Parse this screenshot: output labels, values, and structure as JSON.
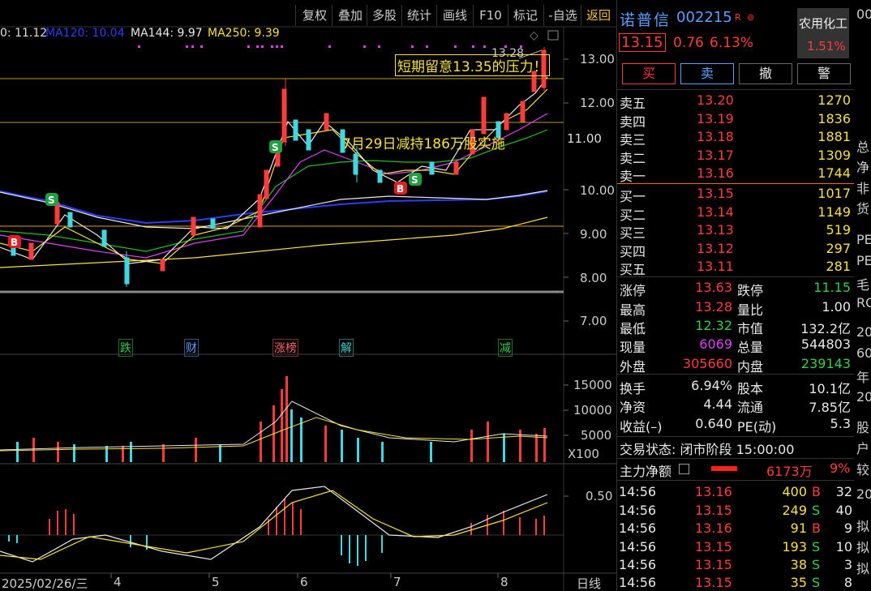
{
  "toolbar": {
    "buttons": [
      "复权",
      "叠加",
      "多股",
      "统计",
      "画线",
      "F10",
      "标记",
      "-自选",
      "返回"
    ]
  },
  "ma_legend": [
    {
      "label": "0: 11.12",
      "color": "#e8e8e8"
    },
    {
      "label": "MA120: 10.04",
      "color": "#2a3cff"
    },
    {
      "label": "MA144: 9.97",
      "color": "#e8e8e8"
    },
    {
      "label": "MA250: 9.39",
      "color": "#f7e13a"
    }
  ],
  "price_axis": [
    "13.00",
    "12.00",
    "11.00",
    "10.00",
    "9.00",
    "8.00",
    "7.00"
  ],
  "current_price_tag": "11.00",
  "high_label": "13.28",
  "annotations": {
    "pressure": "短期留意13.35的压力！",
    "reduce": "7月29日减持186万股实施"
  },
  "event_tags": [
    {
      "text": "跌",
      "color": "#2fd14a"
    },
    {
      "text": "财",
      "color": "#5aa0ff"
    },
    {
      "text": "涨榜",
      "color": "#ff6b6b"
    },
    {
      "text": "解",
      "color": "#3fd0d0"
    },
    {
      "text": "减",
      "color": "#2fd14a"
    }
  ],
  "volume_axis": [
    "15000",
    "10000",
    "5000"
  ],
  "volume_unit": "X100",
  "macd_axis": [
    "0.50"
  ],
  "date_axis": [
    "2025/02/26/三",
    "4",
    "5",
    "6",
    "7",
    "8"
  ],
  "period": "日线",
  "stock": {
    "name": "诺普信",
    "code": "002215",
    "badge": "R",
    "price": "13.15",
    "change": "0.76",
    "change_pct": "6.13%",
    "sector": "农用化工",
    "sector_pct": "1.51%"
  },
  "trade_buttons": [
    "买",
    "卖",
    "撤",
    "警"
  ],
  "asks": [
    {
      "label": "卖五",
      "price": "13.20",
      "vol": "1270"
    },
    {
      "label": "卖四",
      "price": "13.19",
      "vol": "1836"
    },
    {
      "label": "卖三",
      "price": "13.18",
      "vol": "1881"
    },
    {
      "label": "卖二",
      "price": "13.17",
      "vol": "1309"
    },
    {
      "label": "卖一",
      "price": "13.16",
      "vol": "1744"
    }
  ],
  "bids": [
    {
      "label": "买一",
      "price": "13.15",
      "vol": "1017"
    },
    {
      "label": "买二",
      "price": "13.14",
      "vol": "1149"
    },
    {
      "label": "买三",
      "price": "13.13",
      "vol": "519"
    },
    {
      "label": "买四",
      "price": "13.12",
      "vol": "297"
    },
    {
      "label": "买五",
      "price": "13.11",
      "vol": "281"
    }
  ],
  "stats": [
    {
      "k1": "涨停",
      "v1": "13.63",
      "c1": "red",
      "k2": "跌停",
      "v2": "11.15",
      "c2": "green"
    },
    {
      "k1": "最高",
      "v1": "13.28",
      "c1": "red",
      "k2": "量比",
      "v2": "1.00",
      "c2": "white"
    },
    {
      "k1": "最低",
      "v1": "12.32",
      "c1": "green",
      "k2": "市值",
      "v2": "132.2亿",
      "c2": "white"
    },
    {
      "k1": "现量",
      "v1": "6069",
      "c1": "magenta",
      "k2": "总量",
      "v2": "544803",
      "c2": "white"
    },
    {
      "k1": "外盘",
      "v1": "305660",
      "c1": "red",
      "k2": "内盘",
      "v2": "239143",
      "c2": "green"
    }
  ],
  "fundamentals": [
    {
      "k1": "换手",
      "v1": "6.94%",
      "k2": "股本",
      "v2": "10.1亿"
    },
    {
      "k1": "净资",
      "v1": "4.44",
      "k2": "流通",
      "v2": "7.85亿"
    },
    {
      "k1": "收益(–)",
      "v1": "0.640",
      "k2": "PE(动)",
      "v2": "5.3"
    }
  ],
  "trade_status": "交易状态: 闭市阶段 15:00:00",
  "main_flow": {
    "label": "主力净额",
    "value": "6173万",
    "pct": "9%"
  },
  "ticks": [
    {
      "time": "14:56",
      "price": "13.16",
      "vol": "400",
      "side": "B",
      "num": "32"
    },
    {
      "time": "14:56",
      "price": "13.15",
      "vol": "249",
      "side": "S",
      "num": "40"
    },
    {
      "time": "14:56",
      "price": "13.16",
      "vol": "91",
      "side": "B",
      "num": "9"
    },
    {
      "time": "14:56",
      "price": "13.15",
      "vol": "193",
      "side": "S",
      "num": "10"
    },
    {
      "time": "14:56",
      "price": "13.15",
      "vol": "38",
      "side": "S",
      "num": "3"
    },
    {
      "time": "14:56",
      "price": "13.15",
      "vol": "35",
      "side": "S",
      "num": "8"
    }
  ],
  "cutoff_labels": [
    "00",
    "总",
    "净",
    "非",
    "货",
    "PE",
    "PE",
    "毛",
    "RO",
    "20",
    "60",
    "年",
    "20",
    "股",
    "户",
    "较",
    "20",
    "拟",
    "拟",
    "拟"
  ]
}
